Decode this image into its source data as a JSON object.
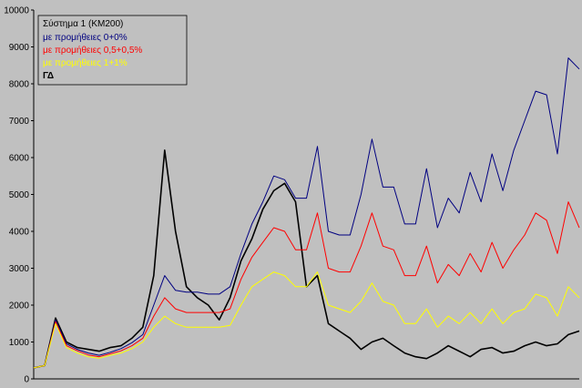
{
  "chart_data": {
    "type": "line",
    "title": "",
    "xlabel": "",
    "ylabel": "",
    "ylim": [
      0,
      10000
    ],
    "yticks": [
      0,
      1000,
      2000,
      3000,
      4000,
      5000,
      6000,
      7000,
      8000,
      9000,
      10000
    ],
    "ytick_labels": [
      "0",
      "1000",
      "2000",
      "3000",
      "4000",
      "5000",
      "6000",
      "7000",
      "8000",
      "9000",
      "10000"
    ],
    "grid": false,
    "legend_position": "top-left",
    "legend_title": "Σύστημα 1 (ΚΜ200)",
    "x": [
      0,
      2,
      4,
      6,
      8,
      10,
      12,
      14,
      16,
      18,
      20,
      22,
      24,
      26,
      28,
      30,
      32,
      34,
      36,
      38,
      40,
      42,
      44,
      46,
      48,
      50,
      52,
      54,
      56,
      58,
      60,
      62,
      64,
      66,
      68,
      70,
      72,
      74,
      76,
      78,
      80,
      82,
      84,
      86,
      88,
      90,
      92,
      94,
      96,
      98,
      100
    ],
    "series": [
      {
        "name": "με προμήθειες 0+0%",
        "color": "#000080",
        "values": [
          300,
          360,
          1600,
          950,
          800,
          700,
          640,
          720,
          820,
          980,
          1200,
          2000,
          2800,
          2400,
          2350,
          2350,
          2300,
          2300,
          2500,
          3400,
          4200,
          4800,
          5500,
          5400,
          4900,
          4900,
          6300,
          4000,
          3900,
          3900,
          5000,
          6500,
          5200,
          5200,
          4200,
          4200,
          5700,
          4100,
          4900,
          4500,
          5600,
          4800,
          6100,
          5100,
          6200,
          7000,
          7800,
          7700,
          6100,
          8700,
          8400
        ]
      },
      {
        "name": "με προμήθειες 0,5+0,5%",
        "color": "#ff0000",
        "values": [
          300,
          360,
          1550,
          900,
          760,
          650,
          600,
          680,
          760,
          900,
          1100,
          1700,
          2200,
          1900,
          1800,
          1800,
          1800,
          1800,
          1900,
          2700,
          3300,
          3700,
          4100,
          4000,
          3500,
          3500,
          4500,
          3000,
          2900,
          2900,
          3600,
          4500,
          3600,
          3500,
          2800,
          2800,
          3600,
          2600,
          3100,
          2800,
          3400,
          2900,
          3700,
          3000,
          3500,
          3900,
          4500,
          4300,
          3400,
          4800,
          4100
        ]
      },
      {
        "name": "με προμήθειες 1+1%",
        "color": "#ffff00",
        "values": [
          300,
          360,
          1500,
          850,
          700,
          600,
          560,
          640,
          700,
          820,
          1000,
          1400,
          1700,
          1500,
          1400,
          1400,
          1400,
          1400,
          1450,
          2000,
          2500,
          2700,
          2900,
          2800,
          2500,
          2500,
          2900,
          2000,
          1900,
          1800,
          2100,
          2600,
          2100,
          2000,
          1500,
          1500,
          1900,
          1400,
          1700,
          1500,
          1800,
          1500,
          1900,
          1500,
          1800,
          1900,
          2300,
          2200,
          1700,
          2500,
          2200
        ]
      },
      {
        "name": "ΓΔ",
        "color": "#000000",
        "values": [
          300,
          360,
          1650,
          1000,
          850,
          800,
          750,
          850,
          900,
          1100,
          1400,
          2800,
          6200,
          4000,
          2500,
          2200,
          2000,
          1600,
          2200,
          3200,
          3800,
          4600,
          5100,
          5300,
          4800,
          2500,
          2800,
          1500,
          1300,
          1100,
          800,
          1000,
          1100,
          900,
          700,
          600,
          550,
          700,
          900,
          750,
          600,
          800,
          850,
          700,
          750,
          900,
          1000,
          900,
          950,
          1200,
          1300
        ]
      }
    ]
  }
}
